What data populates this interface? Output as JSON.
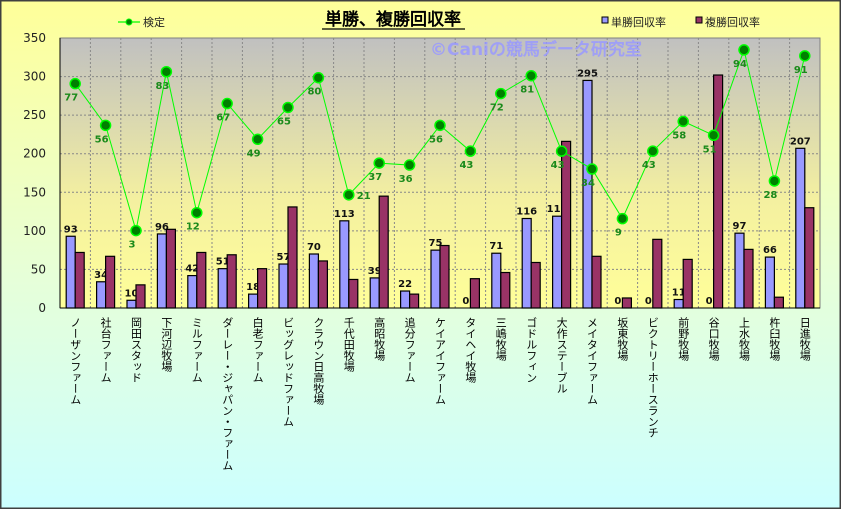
{
  "chart_data": {
    "type": "bar",
    "title": "単勝、複勝回収率",
    "watermark": "©Caniの競馬データ研究室",
    "xlabel": "",
    "ylabel": "",
    "ylim": [
      0,
      350
    ],
    "yticks": [
      0,
      50,
      100,
      150,
      200,
      250,
      300,
      350
    ],
    "grid": true,
    "legend": [
      "検定",
      "単勝回収率",
      "複勝回収率"
    ],
    "categories": [
      "ノーザンファーム",
      "社台ファーム",
      "岡田スタッド",
      "下河辺牧場",
      "ミルファーム",
      "ダーレー・ジャパン・ファーム",
      "白老ファーム",
      "ビッグレッドファーム",
      "クラウン日高牧場",
      "千代田牧場",
      "高昭牧場",
      "追分ファーム",
      "ケイアイファーム",
      "タイヘイ牧場",
      "三嶋牧場",
      "ゴドルフィン",
      "大作ステーブル",
      "メイタイファーム",
      "坂東牧場",
      "ビクトリーホースランチ",
      "前野牧場",
      "谷口牧場",
      "上水牧場",
      "杵臼牧場",
      "日進牧場"
    ],
    "series": [
      {
        "name": "単勝回収率",
        "type": "bar",
        "color": "#9999ff",
        "labeled": true,
        "values": [
          93,
          34,
          10,
          96,
          42,
          51,
          18,
          57,
          70,
          113,
          39,
          22,
          75,
          0,
          71,
          116,
          119,
          295,
          0,
          0,
          11,
          0,
          97,
          66,
          207
        ]
      },
      {
        "name": "複勝回収率",
        "type": "bar",
        "color": "#993366",
        "labeled": false,
        "values": [
          72,
          67,
          30,
          102,
          72,
          69,
          51,
          131,
          61,
          37,
          145,
          18,
          81,
          38,
          46,
          59,
          216,
          67,
          13,
          89,
          63,
          302,
          76,
          14,
          130
        ]
      },
      {
        "name": "検定",
        "type": "line",
        "color": "#00ff00",
        "marker_color": "#008000",
        "label_color": "#1a8a1a",
        "axis": "secondary",
        "secondary_ylim": [
          -36,
          100
        ],
        "values": [
          77,
          56,
          3,
          83,
          12,
          67,
          49,
          65,
          80,
          21,
          37,
          36,
          56,
          43,
          72,
          81,
          43,
          34,
          9,
          43,
          58,
          51,
          94,
          28,
          91
        ]
      }
    ]
  }
}
